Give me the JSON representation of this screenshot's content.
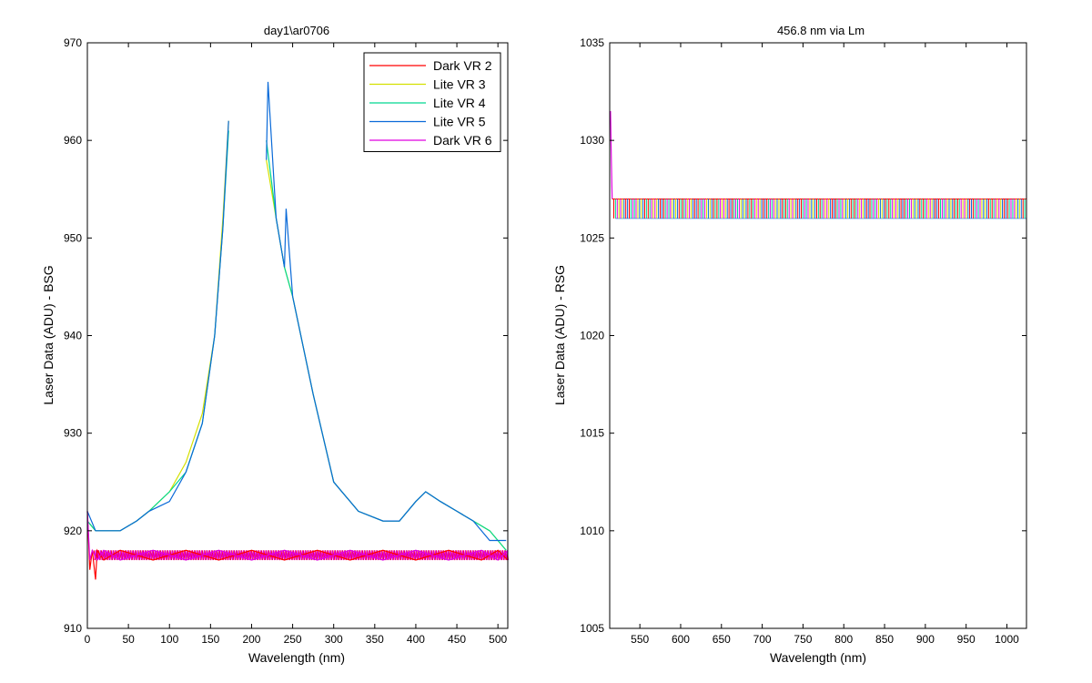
{
  "chart_data": [
    {
      "type": "line",
      "title": "day1\\ar0706",
      "xlabel": "Wavelength (nm)",
      "ylabel": "Laser Data (ADU) - BSG",
      "xlim": [
        0,
        512
      ],
      "ylim": [
        910,
        970
      ],
      "xticks": [
        0,
        50,
        100,
        150,
        200,
        250,
        300,
        350,
        400,
        450,
        500
      ],
      "yticks": [
        910,
        920,
        930,
        940,
        950,
        960,
        970
      ],
      "legend_position": "top-right",
      "grid": false,
      "series": [
        {
          "name": "Dark VR 2",
          "color": "#ff0000",
          "x": [
            0,
            3,
            6,
            10,
            12,
            20,
            40,
            80,
            120,
            160,
            200,
            240,
            280,
            320,
            360,
            400,
            440,
            480,
            500,
            512
          ],
          "values": [
            922,
            916,
            918,
            915,
            918,
            917,
            918,
            917,
            918,
            917,
            918,
            917,
            918,
            917,
            918,
            917,
            918,
            917,
            918,
            917
          ]
        },
        {
          "name": "Lite VR 3",
          "color": "#d4e000",
          "x": [
            0,
            10,
            40,
            60,
            75,
            100,
            120,
            140,
            155,
            165,
            172,
            180,
            200,
            218,
            230,
            240,
            250,
            275,
            300,
            330,
            360,
            380,
            400,
            412,
            430,
            450,
            470,
            490,
            510
          ],
          "values": [
            921,
            920,
            920,
            921,
            922,
            924,
            927,
            932,
            940,
            952,
            962,
            null,
            null,
            958,
            952,
            947,
            944,
            934,
            925,
            922,
            921,
            921,
            923,
            924,
            923,
            922,
            921,
            920,
            918
          ]
        },
        {
          "name": "Lite VR 4",
          "color": "#00d890",
          "x": [
            0,
            10,
            40,
            60,
            75,
            100,
            120,
            140,
            155,
            165,
            172,
            180,
            200,
            218,
            230,
            240,
            250,
            275,
            300,
            330,
            360,
            380,
            400,
            412,
            430,
            450,
            470,
            490,
            510
          ],
          "values": [
            921,
            920,
            920,
            921,
            922,
            924,
            926,
            931,
            940,
            951,
            961,
            null,
            null,
            960,
            952,
            947,
            944,
            934,
            925,
            922,
            921,
            921,
            923,
            924,
            923,
            922,
            921,
            920,
            918
          ]
        },
        {
          "name": "Lite VR 5",
          "color": "#0a6ad8",
          "x": [
            0,
            10,
            40,
            60,
            75,
            100,
            120,
            140,
            155,
            165,
            172,
            180,
            200,
            218,
            220,
            230,
            240,
            242,
            250,
            275,
            300,
            330,
            360,
            380,
            400,
            412,
            430,
            450,
            470,
            490,
            510
          ],
          "values": [
            922,
            920,
            920,
            921,
            922,
            923,
            926,
            931,
            940,
            951,
            962,
            null,
            null,
            958,
            966,
            952,
            947,
            953,
            944,
            934,
            925,
            922,
            921,
            921,
            923,
            924,
            923,
            922,
            921,
            919,
            919
          ]
        },
        {
          "name": "Dark VR 6",
          "color": "#e000e0",
          "x": [
            0,
            3,
            6,
            12,
            20,
            40,
            80,
            120,
            160,
            200,
            240,
            280,
            320,
            360,
            400,
            440,
            480,
            500,
            512
          ],
          "values": [
            922,
            917,
            918,
            917,
            918,
            917,
            918,
            917,
            918,
            917,
            918,
            917,
            918,
            917,
            918,
            917,
            918,
            917,
            918
          ]
        }
      ],
      "noise_band": {
        "dark_low": 917,
        "dark_high": 918
      }
    },
    {
      "type": "line",
      "title": "456.8 nm via Lm",
      "xlabel": "Wavelength (nm)",
      "ylabel": "Laser Data (ADU) - RSG",
      "xlim": [
        513,
        1024
      ],
      "ylim": [
        1005,
        1035
      ],
      "xticks": [
        550,
        600,
        650,
        700,
        750,
        800,
        850,
        900,
        950,
        1000
      ],
      "yticks": [
        1005,
        1010,
        1015,
        1020,
        1025,
        1030,
        1035
      ],
      "grid": false,
      "series_colors": [
        "#ff0000",
        "#d4e000",
        "#00d890",
        "#0a6ad8",
        "#e000e0"
      ],
      "start_points": [
        1031.5,
        1029,
        1027
      ],
      "band_low": 1026,
      "band_high": 1027
    }
  ]
}
